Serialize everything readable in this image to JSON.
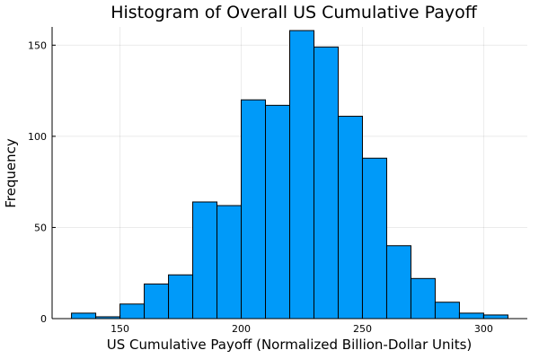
{
  "chart_data": {
    "type": "bar",
    "title": "Histogram of Overall US Cumulative Payoff",
    "xlabel": "US Cumulative Payoff (Normalized Billion-Dollar Units)",
    "ylabel": "Frequency",
    "bin_width": 10,
    "bins": [
      {
        "start": 130,
        "end": 140,
        "value": 3
      },
      {
        "start": 140,
        "end": 150,
        "value": 1
      },
      {
        "start": 150,
        "end": 160,
        "value": 8
      },
      {
        "start": 160,
        "end": 170,
        "value": 19
      },
      {
        "start": 170,
        "end": 180,
        "value": 24
      },
      {
        "start": 180,
        "end": 190,
        "value": 64
      },
      {
        "start": 190,
        "end": 200,
        "value": 62
      },
      {
        "start": 200,
        "end": 210,
        "value": 120
      },
      {
        "start": 210,
        "end": 220,
        "value": 117
      },
      {
        "start": 220,
        "end": 230,
        "value": 158
      },
      {
        "start": 230,
        "end": 240,
        "value": 149
      },
      {
        "start": 240,
        "end": 250,
        "value": 111
      },
      {
        "start": 250,
        "end": 260,
        "value": 88
      },
      {
        "start": 260,
        "end": 270,
        "value": 40
      },
      {
        "start": 270,
        "end": 280,
        "value": 22
      },
      {
        "start": 280,
        "end": 290,
        "value": 9
      },
      {
        "start": 290,
        "end": 300,
        "value": 3
      },
      {
        "start": 300,
        "end": 310,
        "value": 2
      }
    ],
    "xlim": [
      122,
      318
    ],
    "ylim": [
      0,
      160
    ],
    "xticks": [
      150,
      200,
      250,
      300
    ],
    "yticks": [
      0,
      50,
      100,
      150
    ],
    "grid": true,
    "legend": "none",
    "bar_color": "#009af9"
  }
}
